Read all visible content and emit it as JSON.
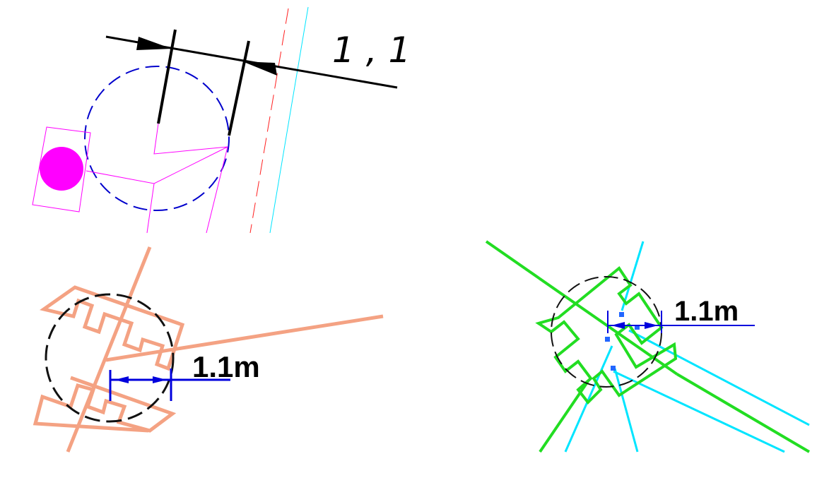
{
  "diagrams": [
    {
      "dimension_label": "1 , 1"
    },
    {
      "dimension_label": "1.1m"
    },
    {
      "dimension_label": "1.1m"
    }
  ],
  "colors": {
    "magenta": "#ff00ff",
    "dashed_circle_blue": "#0000cc",
    "red_dash": "#ff2020",
    "cyan": "#00e5ff",
    "salmon": "#f4a283",
    "dim_blue": "#0000dd",
    "green": "#22dd22",
    "black": "#000000"
  }
}
